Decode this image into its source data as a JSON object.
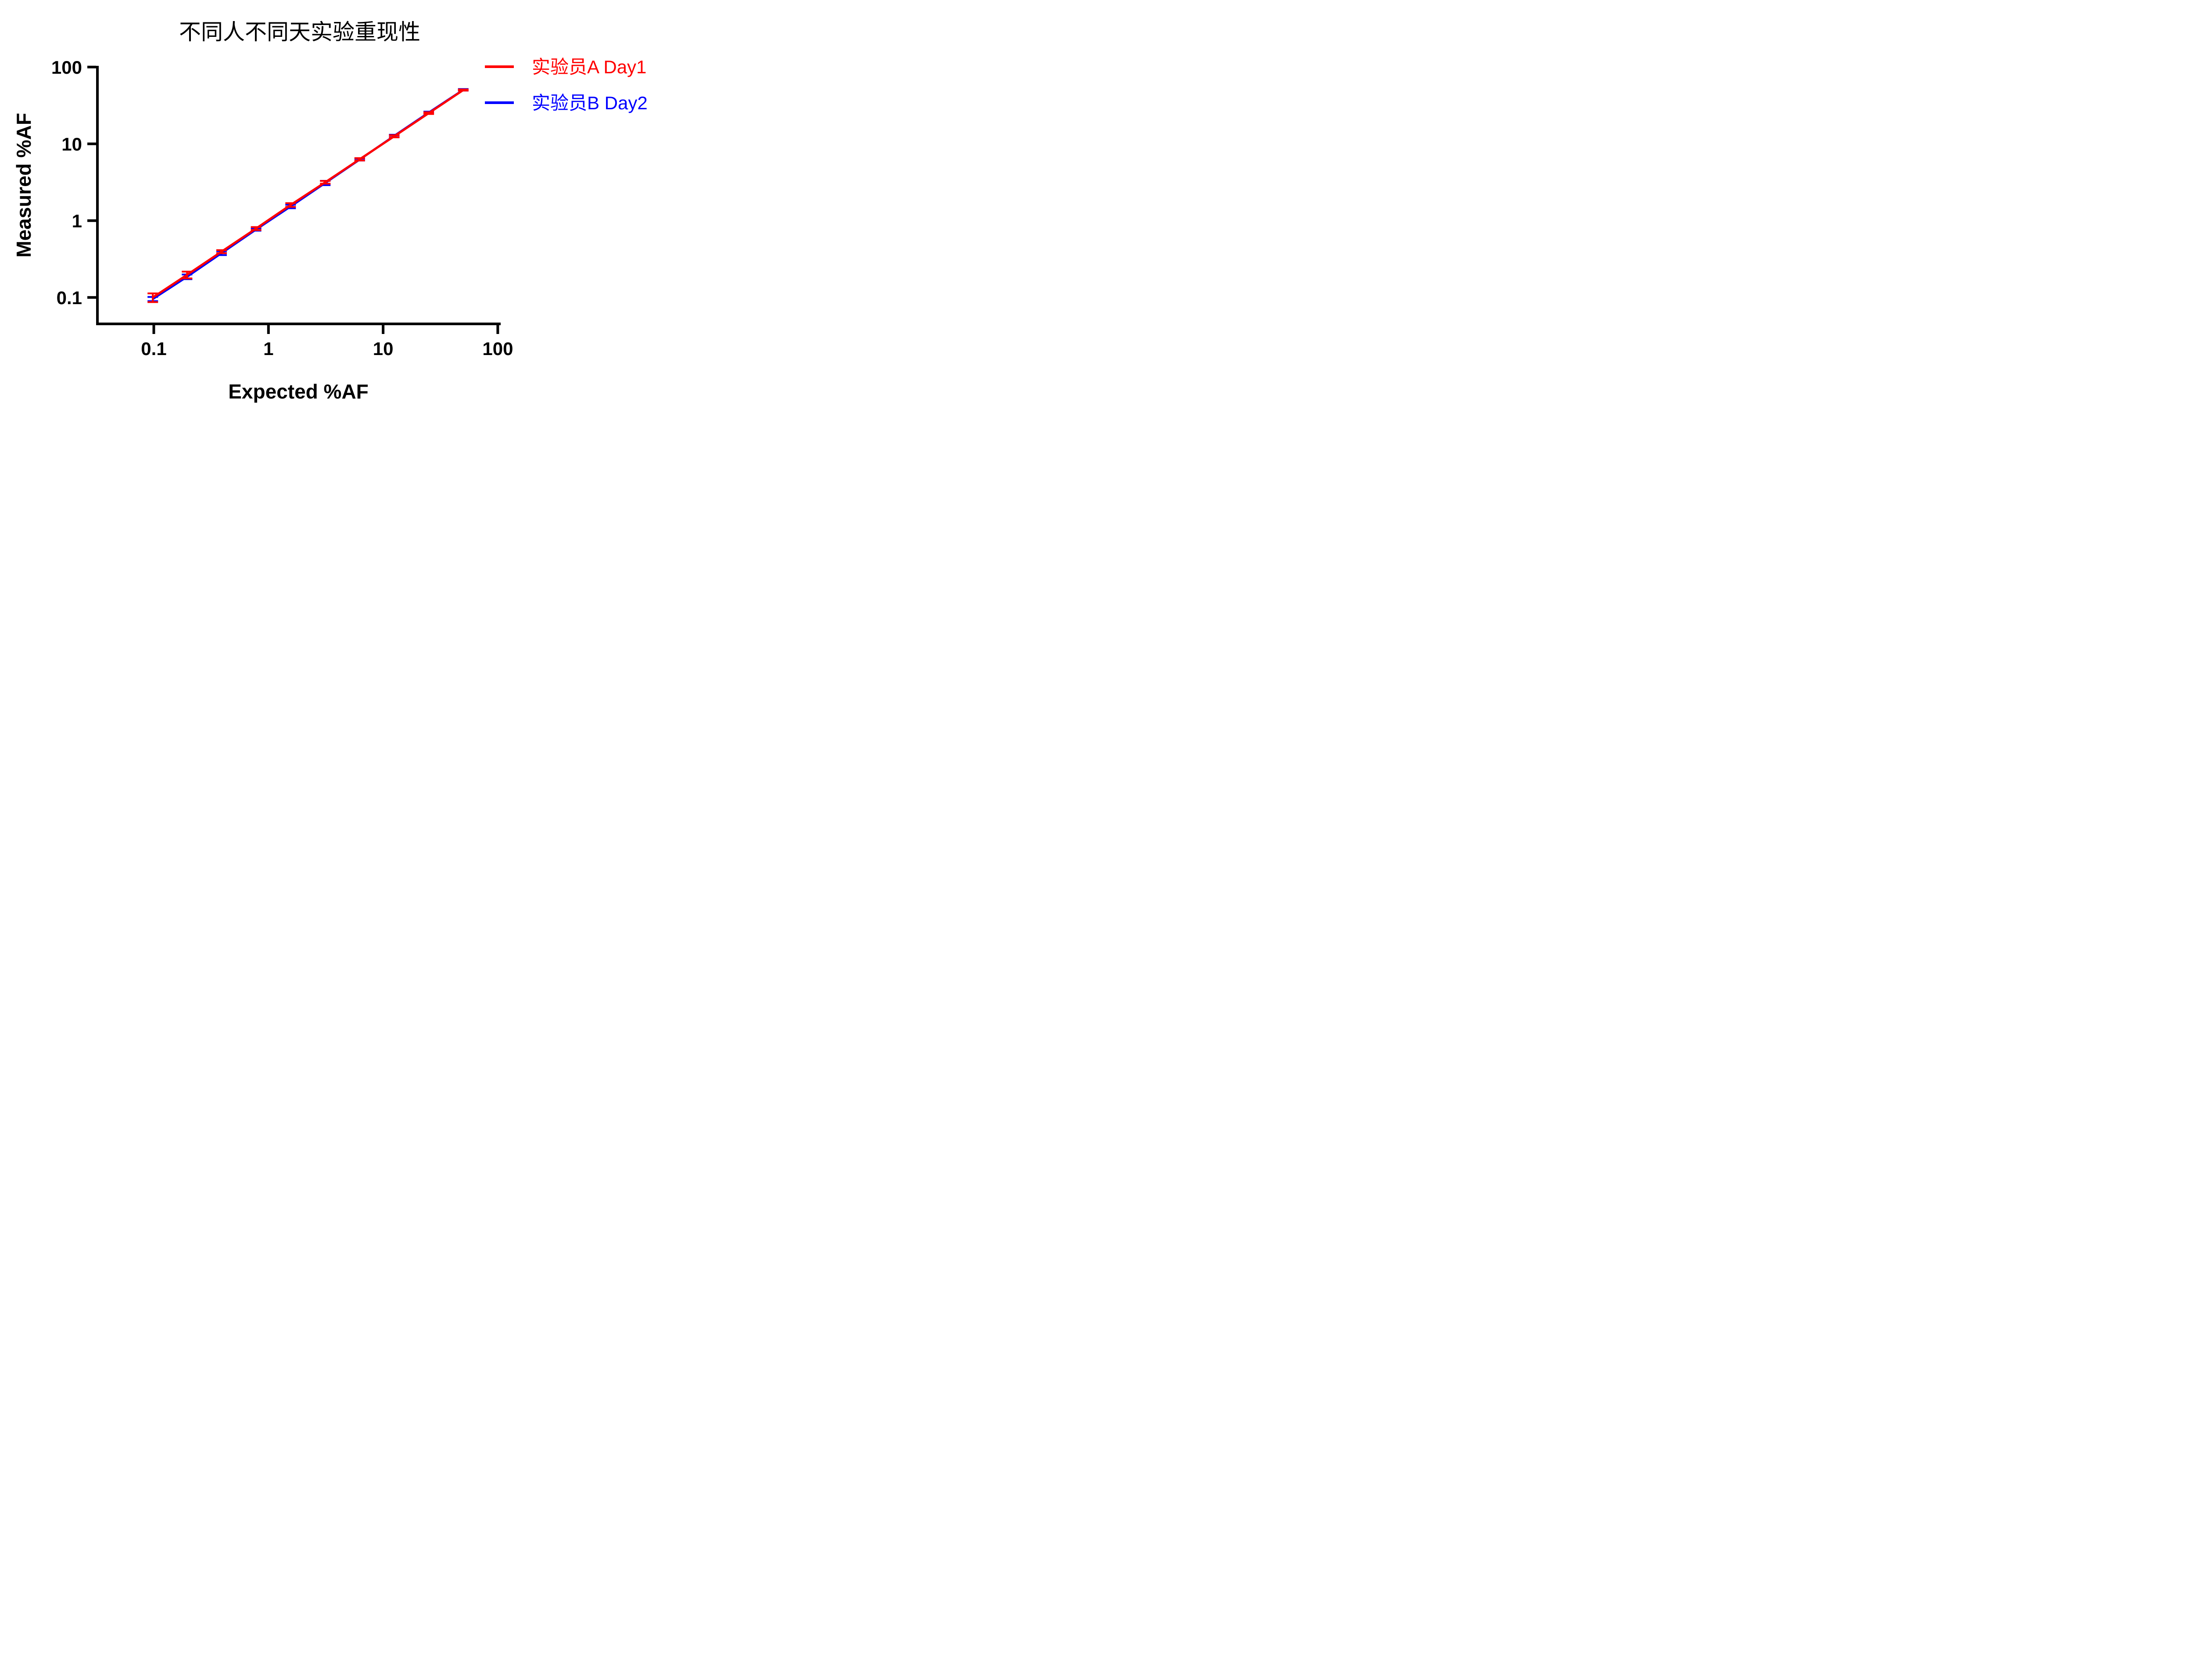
{
  "title": "不同人不同天实验重现性",
  "colors": {
    "series_a": "#ff0000",
    "series_b": "#0000ff",
    "axis": "#000000",
    "background": "#ffffff"
  },
  "legend": {
    "position": "top-right",
    "items": [
      {
        "label": "实验员A Day1",
        "color": "#ff0000"
      },
      {
        "label": "实验员B Day2",
        "color": "#0000ff"
      }
    ]
  },
  "chart_data": {
    "type": "line",
    "title": "不同人不同天实验重现性",
    "xlabel": "Expected %AF",
    "ylabel": "Measured %AF",
    "x_scale": "log",
    "y_scale": "log",
    "xlim": [
      0.1,
      100
    ],
    "ylim": [
      0.1,
      100
    ],
    "x_ticks": [
      "0.1",
      "1",
      "10",
      "100"
    ],
    "y_ticks": [
      "100",
      "10",
      "1",
      "0.1"
    ],
    "grid": false,
    "legend_position": "top-right",
    "error_bars": "mean ± SD (values estimated from figure)",
    "x": [
      0.098,
      0.195,
      0.39,
      0.78,
      1.56,
      3.13,
      6.25,
      12.5,
      25,
      50
    ],
    "series": [
      {
        "name": "实验员A Day1",
        "color": "#ff0000",
        "values": [
          0.1,
          0.197,
          0.395,
          0.79,
          1.6,
          3.16,
          6.3,
          12.55,
          25.1,
          50.2
        ],
        "sd": [
          0.013,
          0.02,
          0.018,
          0.035,
          0.09,
          0.13,
          0.22,
          0.4,
          0.65,
          0.8
        ]
      },
      {
        "name": "实验员B Day2",
        "color": "#0000ff",
        "values": [
          0.0955,
          0.186,
          0.378,
          0.768,
          1.53,
          3.1,
          6.25,
          12.7,
          25.5,
          50.5
        ],
        "sd": [
          0.006,
          0.013,
          0.022,
          0.028,
          0.08,
          0.2,
          0.18,
          0.45,
          0.75,
          1.2
        ]
      }
    ]
  }
}
